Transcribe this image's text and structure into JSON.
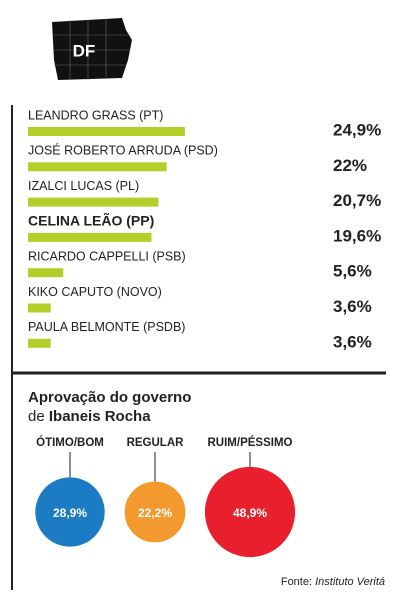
{
  "badge": "DF",
  "chart_data": [
    {
      "type": "hbar",
      "categories": [
        "LEANDRO GRASS (PT)",
        "JOSÉ ROBERTO ARRUDA (PSD)",
        "IZALCI LUCAS (PL)",
        "CELINA LEÃO (PP)",
        "RICARDO CAPPELLI (PSB)",
        "KIKO CAPUTO (NOVO)",
        "PAULA BELMONTE (PSDB)"
      ],
      "values": [
        24.9,
        22,
        20.7,
        19.6,
        5.6,
        3.6,
        3.6
      ],
      "value_labels": [
        "24,9%",
        "22%",
        "20,7%",
        "19,6%",
        "5,6%",
        "3,6%",
        "3,6%"
      ],
      "color": "#b5cf2a"
    },
    {
      "type": "bubble",
      "title": [
        "Aprovação do governo",
        "de",
        "Ibaneis Rocha"
      ],
      "categories": [
        "ÓTIMO/BOM",
        "REGULAR",
        "RUIM/PÉSSIMO"
      ],
      "values": [
        28.9,
        22.2,
        48.9
      ],
      "value_labels": [
        "28,9%",
        "22,2%",
        "48,9%"
      ],
      "colors": [
        "#1b7cc3",
        "#f29a2e",
        "#e8202e"
      ]
    }
  ],
  "source": [
    "Fonte:",
    "Instituto Veritá"
  ]
}
